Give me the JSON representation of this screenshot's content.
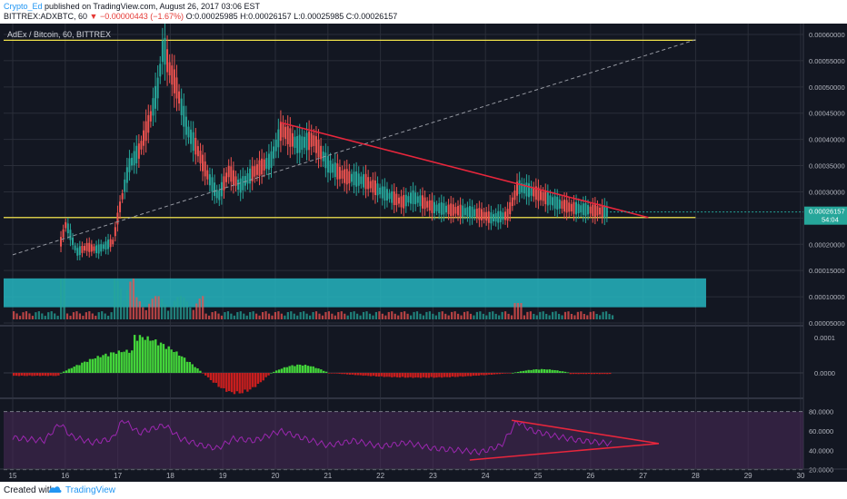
{
  "header": {
    "author": "Crypto_Ed",
    "published": "published on TradingView.com, August 26, 2017 03:06 EST",
    "symbol_line_a": "BITTREX:ADXBTC, 60",
    "change_arrow": "▼",
    "change_text": "−0.00000443 (−1.67%)",
    "ohlc": "O:0.00025985 H:0.00026157 L:0.00025985 C:0.00026157"
  },
  "chart_title": "AdEx / Bitcoin, 60, BITTREX",
  "footer": {
    "created": "Created with",
    "brand": "TradingView"
  },
  "colors": {
    "background": "#131722",
    "up": "#26a69a",
    "down": "#ef5350",
    "hline": "#f0e14a",
    "trendline": "#e8263c",
    "volume_zone": "#26b5c0",
    "rsi_band": "#4a2a5a",
    "rsi_line": "#9c27b0",
    "macd_up": "#43d43a",
    "macd_down": "#c81e1e",
    "grid": "#2a2e39",
    "axis_text": "#b2b5be"
  },
  "chart_data": {
    "type": "candlestick",
    "x_tick_labels": [
      "15",
      "16",
      "17",
      "18",
      "19",
      "20",
      "21",
      "22",
      "23",
      "24",
      "25",
      "26",
      "27",
      "28",
      "29",
      "30"
    ],
    "xlim": [
      15,
      30
    ],
    "price_axis": {
      "ticks": [
        "0.00060000",
        "0.00055000",
        "0.00050000",
        "0.00045000",
        "0.00040000",
        "0.00035000",
        "0.00030000",
        "0.00020000",
        "0.00015000",
        "0.00010000",
        "0.00005000"
      ],
      "ylim": [
        5e-05,
        0.0006
      ],
      "last_price": "0.00026157",
      "countdown": "54:04"
    },
    "price_series_approx": [
      [
        15.9,
        0.000205
      ],
      [
        16.0,
        0.00024
      ],
      [
        16.2,
        0.000185
      ],
      [
        16.4,
        0.000195
      ],
      [
        16.6,
        0.00019
      ],
      [
        16.9,
        0.000205
      ],
      [
        17.0,
        0.00026
      ],
      [
        17.2,
        0.00035
      ],
      [
        17.4,
        0.00038
      ],
      [
        17.6,
        0.00044
      ],
      [
        17.75,
        0.0005
      ],
      [
        17.85,
        0.00058
      ],
      [
        17.95,
        0.00054
      ],
      [
        18.1,
        0.0005
      ],
      [
        18.3,
        0.00042
      ],
      [
        18.5,
        0.00038
      ],
      [
        18.7,
        0.00033
      ],
      [
        18.9,
        0.00029
      ],
      [
        19.1,
        0.00034
      ],
      [
        19.3,
        0.00031
      ],
      [
        19.6,
        0.00034
      ],
      [
        19.9,
        0.00036
      ],
      [
        20.1,
        0.00042
      ],
      [
        20.4,
        0.00039
      ],
      [
        20.7,
        0.0004
      ],
      [
        21.0,
        0.00035
      ],
      [
        21.3,
        0.00033
      ],
      [
        21.7,
        0.00032
      ],
      [
        22.0,
        0.0003
      ],
      [
        22.4,
        0.00028
      ],
      [
        22.6,
        0.00029
      ],
      [
        23.0,
        0.00027
      ],
      [
        23.4,
        0.000265
      ],
      [
        23.8,
        0.00026
      ],
      [
        24.1,
        0.00025
      ],
      [
        24.4,
        0.000255
      ],
      [
        24.6,
        0.00031
      ],
      [
        24.9,
        0.0003
      ],
      [
        25.3,
        0.00028
      ],
      [
        25.6,
        0.00027
      ],
      [
        26.0,
        0.000265
      ],
      [
        26.3,
        0.000262
      ]
    ],
    "horizontal_lines": [
      0.000589,
      0.000251
    ],
    "trend_lines": [
      {
        "name": "resistance",
        "from": [
          20.1,
          0.000432
        ],
        "to": [
          27.1,
          0.000251
        ]
      },
      {
        "name": "support-diagonal",
        "from": [
          15.0,
          0.00018
        ],
        "to": [
          28.0,
          0.00059
        ]
      }
    ],
    "macd_axis": {
      "ticks": [
        "0.0001",
        "0.0000"
      ]
    },
    "rsi_axis": {
      "ticks": [
        "80.0000",
        "60.0000",
        "40.0000",
        "20.0000"
      ],
      "ylim": [
        15,
        90
      ]
    },
    "rsi_series_approx": [
      [
        15.0,
        53
      ],
      [
        15.6,
        50
      ],
      [
        15.9,
        68
      ],
      [
        16.1,
        55
      ],
      [
        16.5,
        48
      ],
      [
        16.9,
        52
      ],
      [
        17.1,
        72
      ],
      [
        17.4,
        58
      ],
      [
        17.7,
        63
      ],
      [
        17.9,
        66
      ],
      [
        18.2,
        52
      ],
      [
        18.6,
        45
      ],
      [
        18.9,
        42
      ],
      [
        19.2,
        52
      ],
      [
        19.6,
        50
      ],
      [
        20.1,
        60
      ],
      [
        20.5,
        53
      ],
      [
        21.0,
        45
      ],
      [
        21.5,
        50
      ],
      [
        22.0,
        44
      ],
      [
        22.5,
        48
      ],
      [
        23.0,
        42
      ],
      [
        23.5,
        40
      ],
      [
        23.9,
        38
      ],
      [
        24.3,
        45
      ],
      [
        24.6,
        70
      ],
      [
        24.9,
        60
      ],
      [
        25.3,
        55
      ],
      [
        25.8,
        50
      ],
      [
        26.2,
        48
      ],
      [
        26.4,
        47
      ]
    ],
    "rsi_triangle": {
      "upper": [
        [
          24.5,
          71
        ],
        [
          27.3,
          47
        ]
      ],
      "lower": [
        [
          23.7,
          30
        ],
        [
          27.3,
          47
        ]
      ]
    }
  }
}
